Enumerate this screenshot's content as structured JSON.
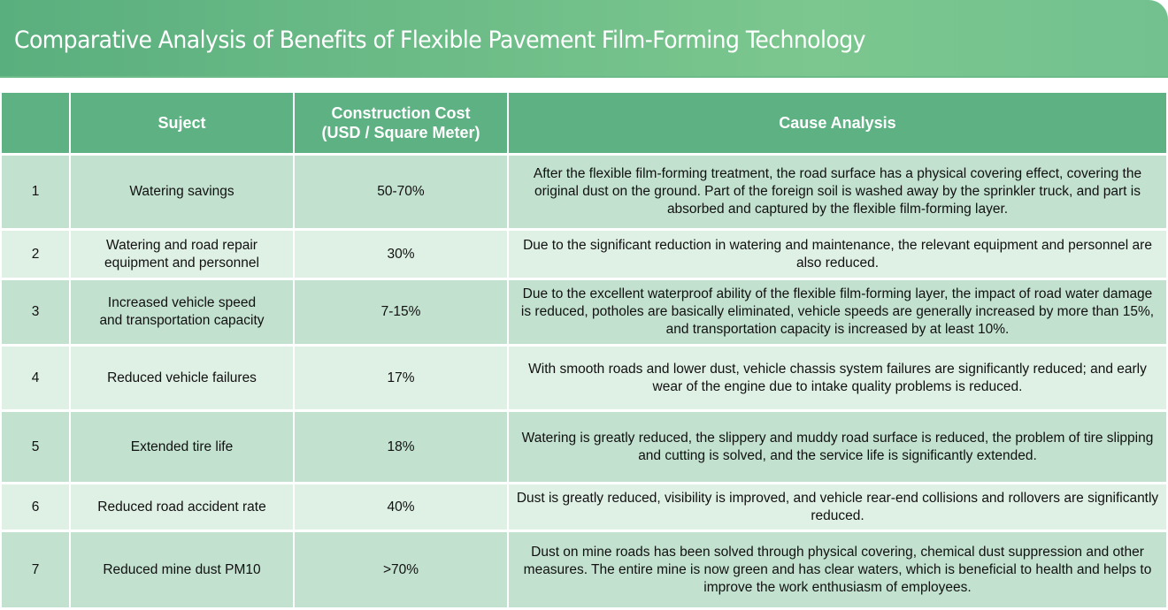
{
  "title": "Comparative Analysis of Benefits of Flexible Pavement Film-Forming Technology",
  "colors": {
    "header": "#5eb183",
    "row_odd": "#c2e1cf",
    "row_even": "#dff0e5"
  },
  "table": {
    "headers": [
      "",
      "Suject",
      "Construction Cost\n(USD / Square Meter)",
      "Cause Analysis"
    ],
    "rows": [
      {
        "no": "1",
        "subject": "Watering savings",
        "cost": "50-70%",
        "cause": "After the flexible film-forming treatment, the road surface has a physical covering effect, covering the original dust on the ground. Part of the foreign soil is washed away by the sprinkler truck, and part is absorbed and captured by the flexible film-forming layer."
      },
      {
        "no": "2",
        "subject": "Watering and road repair equipment and personnel",
        "cost": "30%",
        "cause": "Due to the significant reduction in watering and maintenance, the relevant equipment and personnel are also reduced."
      },
      {
        "no": "3",
        "subject": "Increased vehicle speed and transportation capacity",
        "cost": "7-15%",
        "cause": "Due to the excellent waterproof ability of the flexible film-forming layer, the impact of road water damage is reduced, potholes are basically eliminated, vehicle speeds are generally increased by more than 15%, and transportation capacity is increased by at least 10%."
      },
      {
        "no": "4",
        "subject": "Reduced vehicle failures",
        "cost": "17%",
        "cause": "With smooth roads and lower dust, vehicle chassis system failures are significantly reduced; and early wear of the engine due to intake quality problems is reduced."
      },
      {
        "no": "5",
        "subject": "Extended tire life",
        "cost": "18%",
        "cause": "Watering is greatly reduced, the slippery and muddy road surface is reduced, the problem of tire slipping and cutting is solved, and the service life is significantly extended."
      },
      {
        "no": "6",
        "subject": "Reduced road accident rate",
        "cost": "40%",
        "cause": "Dust is greatly reduced, visibility is improved, and vehicle rear-end collisions and rollovers are significantly reduced."
      },
      {
        "no": "7",
        "subject": "Reduced mine dust PM10",
        "cost": ">70%",
        "cause": "Dust on mine roads has been solved through physical covering, chemical dust suppression and other measures. The entire mine is now green and has clear waters, which is beneficial to health and helps to improve the work enthusiasm of employees."
      }
    ]
  }
}
